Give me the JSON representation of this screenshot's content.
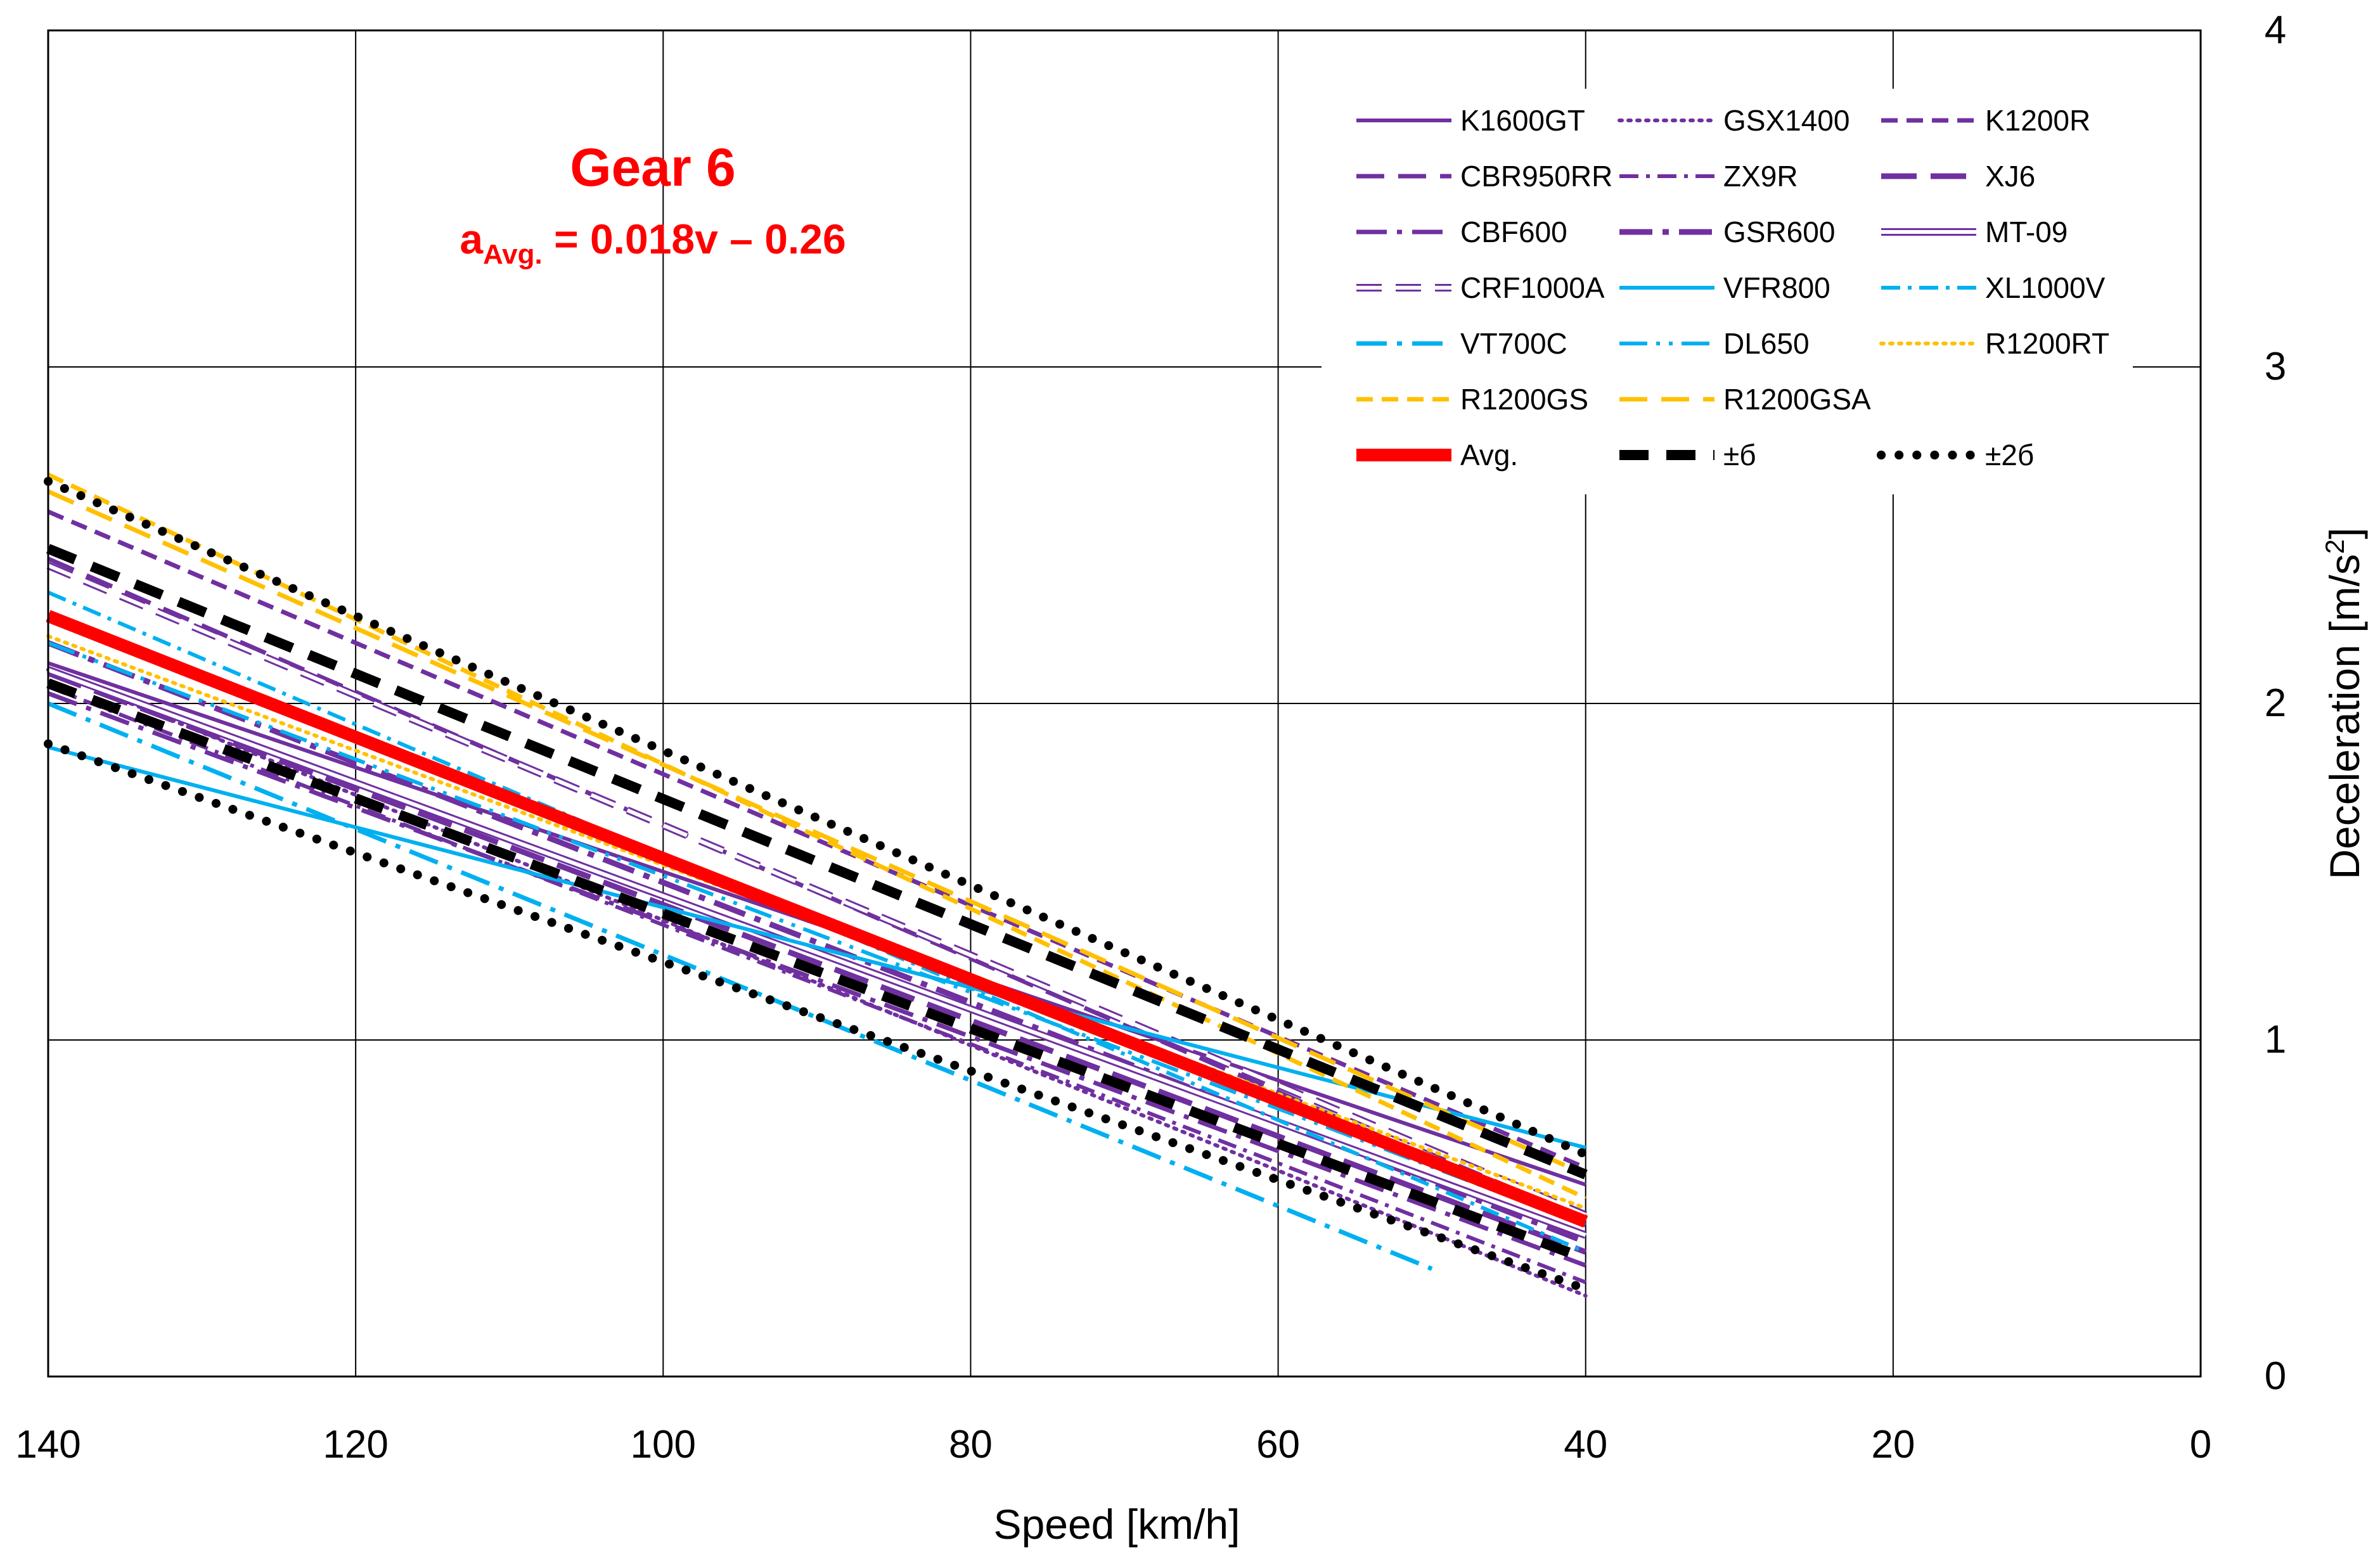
{
  "chart_data": {
    "type": "line",
    "title": "Gear 6",
    "equation": {
      "prefix": "a",
      "subscript": "Avg.",
      "rhs": " = 0.018v – 0.26"
    },
    "xlabel": "Speed [km/h]",
    "ylabel": "Deceleration [m/s²]",
    "ylabel_base": "Deceleration [m/s",
    "ylabel_sup": "2",
    "ylabel_end": "]",
    "xlim": [
      140,
      0
    ],
    "ylim": [
      0,
      4
    ],
    "x_ticks": [
      140,
      120,
      100,
      80,
      60,
      40,
      20,
      0
    ],
    "y_ticks": [
      0,
      1,
      2,
      3,
      4
    ],
    "grid": true,
    "legend_position": "top-right",
    "colors": {
      "purple": "#7030a0",
      "blue": "#00b0f0",
      "orange": "#ffc000",
      "red": "#ff0000",
      "black": "#000000"
    },
    "series": [
      {
        "name": "K1600GT",
        "x": [
          140,
          40
        ],
        "y": [
          2.12,
          0.57
        ],
        "color": "#7030a0",
        "style": "solid"
      },
      {
        "name": "GSX1400",
        "x": [
          140,
          40
        ],
        "y": [
          2.1,
          0.24
        ],
        "color": "#7030a0",
        "style": "dot"
      },
      {
        "name": "K1200R",
        "x": [
          140,
          40
        ],
        "y": [
          2.57,
          0.62
        ],
        "color": "#7030a0",
        "style": "dash"
      },
      {
        "name": "CBR950RR",
        "x": [
          140,
          40
        ],
        "y": [
          2.43,
          0.45
        ],
        "color": "#7030a0",
        "style": "longdash"
      },
      {
        "name": "ZX9R",
        "x": [
          140,
          40
        ],
        "y": [
          2.05,
          0.28
        ],
        "color": "#7030a0",
        "style": "dashdot"
      },
      {
        "name": "XJ6",
        "x": [
          140,
          40
        ],
        "y": [
          2.09,
          0.37
        ],
        "color": "#7030a0",
        "style": "longdash-heavy"
      },
      {
        "name": "CBF600",
        "x": [
          140,
          40
        ],
        "y": [
          2.03,
          0.33
        ],
        "color": "#7030a0",
        "style": "longdashdot"
      },
      {
        "name": "GSR600",
        "x": [
          140,
          40
        ],
        "y": [
          2.18,
          0.4
        ],
        "color": "#7030a0",
        "style": "longdashdot-heavy"
      },
      {
        "name": "MT-09",
        "x": [
          140,
          40
        ],
        "y": [
          2.1,
          0.42
        ],
        "color": "#7030a0",
        "style": "double"
      },
      {
        "name": "CRF1000A",
        "x": [
          140,
          40
        ],
        "y": [
          2.41,
          0.48
        ],
        "color": "#7030a0",
        "style": "double-dash"
      },
      {
        "name": "VFR800",
        "x": [
          140,
          40
        ],
        "y": [
          1.87,
          0.68
        ],
        "color": "#00b0f0",
        "style": "solid"
      },
      {
        "name": "XL1000V",
        "x": [
          140,
          40
        ],
        "y": [
          2.33,
          0.37
        ],
        "color": "#00b0f0",
        "style": "dashdot"
      },
      {
        "name": "VT700C",
        "x": [
          140,
          50
        ],
        "y": [
          2.0,
          0.32
        ],
        "color": "#00b0f0",
        "style": "longdashdot"
      },
      {
        "name": "DL650",
        "x": [
          140,
          40
        ],
        "y": [
          2.18,
          0.45
        ],
        "color": "#00b0f0",
        "style": "longdashdotdot"
      },
      {
        "name": "R1200RT",
        "x": [
          140,
          40
        ],
        "y": [
          2.2,
          0.5
        ],
        "color": "#ffc000",
        "style": "dot"
      },
      {
        "name": "R1200GS",
        "x": [
          140,
          40
        ],
        "y": [
          2.68,
          0.53
        ],
        "color": "#ffc000",
        "style": "dash"
      },
      {
        "name": "R1200GSA",
        "x": [
          140,
          40
        ],
        "y": [
          2.63,
          0.6
        ],
        "color": "#ffc000",
        "style": "longdash"
      },
      {
        "name": "Avg.",
        "x": [
          140,
          40
        ],
        "y": [
          2.26,
          0.46
        ],
        "color": "#ff0000",
        "style": "avg"
      },
      {
        "name": "±б",
        "x": [
          140,
          40
        ],
        "y": [
          2.46,
          0.6
        ],
        "color": "#000000",
        "style": "sigma"
      },
      {
        "name": "±б",
        "x": [
          140,
          40
        ],
        "y": [
          2.06,
          0.35
        ],
        "color": "#000000",
        "style": "sigma"
      },
      {
        "name": "±2б",
        "x": [
          140,
          40
        ],
        "y": [
          2.66,
          0.66
        ],
        "color": "#000000",
        "style": "sigma2"
      },
      {
        "name": "±2б",
        "x": [
          140,
          40
        ],
        "y": [
          1.88,
          0.26
        ],
        "color": "#000000",
        "style": "sigma2"
      }
    ],
    "legend": [
      {
        "label": "K1600GT",
        "color": "#7030a0",
        "style": "solid"
      },
      {
        "label": "GSX1400",
        "color": "#7030a0",
        "style": "dot"
      },
      {
        "label": "K1200R",
        "color": "#7030a0",
        "style": "dash"
      },
      {
        "label": "CBR950RR",
        "color": "#7030a0",
        "style": "longdash"
      },
      {
        "label": "ZX9R",
        "color": "#7030a0",
        "style": "dashdot"
      },
      {
        "label": "XJ6",
        "color": "#7030a0",
        "style": "longdash-heavy"
      },
      {
        "label": "CBF600",
        "color": "#7030a0",
        "style": "longdashdot"
      },
      {
        "label": "GSR600",
        "color": "#7030a0",
        "style": "longdashdot-heavy"
      },
      {
        "label": "MT-09",
        "color": "#7030a0",
        "style": "double"
      },
      {
        "label": "CRF1000A",
        "color": "#7030a0",
        "style": "double-dash"
      },
      {
        "label": "VFR800",
        "color": "#00b0f0",
        "style": "solid"
      },
      {
        "label": "XL1000V",
        "color": "#00b0f0",
        "style": "dashdot"
      },
      {
        "label": "VT700C",
        "color": "#00b0f0",
        "style": "longdashdot"
      },
      {
        "label": "DL650",
        "color": "#00b0f0",
        "style": "longdashdotdot"
      },
      {
        "label": "R1200RT",
        "color": "#ffc000",
        "style": "dot"
      },
      {
        "label": "R1200GS",
        "color": "#ffc000",
        "style": "dash"
      },
      {
        "label": "R1200GSA",
        "color": "#ffc000",
        "style": "longdash"
      },
      {
        "label": "",
        "color": "#ffffff",
        "style": "none"
      },
      {
        "label": "Avg.",
        "color": "#ff0000",
        "style": "avg"
      },
      {
        "label": "±б",
        "color": "#000000",
        "style": "sigma"
      },
      {
        "label": "±2б",
        "color": "#000000",
        "style": "sigma2"
      }
    ]
  }
}
